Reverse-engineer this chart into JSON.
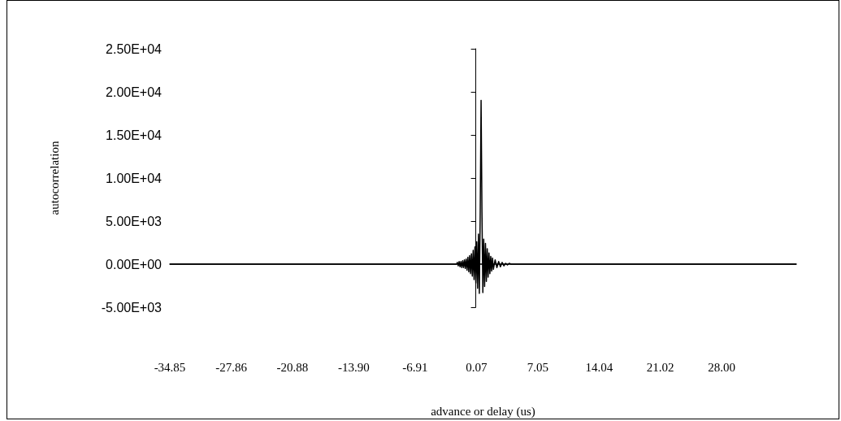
{
  "chart_data": {
    "type": "line",
    "xlabel": "advance or delay (us)",
    "ylabel": "autocorrelation",
    "xlim": [
      -34.85,
      36.5
    ],
    "xticks": [
      -34.85,
      -27.86,
      -20.88,
      {
        "value": -13.9,
        "label": "-13.90"
      },
      -6.91,
      0.07,
      7.05,
      14.04,
      21.02,
      {
        "value": 28,
        "label": "28.00"
      }
    ],
    "ylim": [
      -5000,
      25000
    ],
    "yticks": [
      {
        "value": -5000,
        "label": "-5.00E+03"
      },
      {
        "value": 0,
        "label": "0.00E+00"
      },
      {
        "value": 5000,
        "label": "5.00E+03"
      },
      {
        "value": 10000,
        "label": "1.00E+04"
      },
      {
        "value": 15000,
        "label": "1.50E+04"
      },
      {
        "value": 20000,
        "label": "2.00E+04"
      },
      {
        "value": 25000,
        "label": "2.50E+04"
      }
    ],
    "grid": false,
    "marker": "none",
    "line_style": "solid",
    "series": [
      {
        "color": "#000000",
        "x": [
          -34.85,
          -3.0,
          -2.2,
          -2.1,
          -2.0,
          -1.9,
          -1.8,
          -1.7,
          -1.6,
          -1.5,
          -1.4,
          -1.3,
          -1.2,
          -1.1,
          -1.0,
          -0.9,
          -0.8,
          -0.7,
          -0.6,
          -0.5,
          -0.4,
          -0.3,
          -0.2,
          -0.1,
          0.0,
          0.1,
          0.2,
          0.3,
          0.4,
          0.5,
          0.6,
          0.7,
          0.8,
          0.9,
          1.0,
          1.1,
          1.2,
          1.3,
          1.4,
          1.5,
          1.6,
          1.7,
          1.8,
          1.9,
          2.0,
          2.2,
          2.4,
          2.6,
          2.8,
          3.0,
          3.2,
          3.4,
          3.6,
          3.8,
          4.0,
          6.0,
          36.5
        ],
        "values": [
          0,
          0,
          0,
          200,
          -200,
          300,
          -300,
          300,
          -400,
          400,
          -400,
          500,
          -500,
          600,
          -700,
          800,
          -900,
          1000,
          -1100,
          1200,
          -1400,
          1600,
          -1800,
          2000,
          -2200,
          2600,
          -2800,
          3500,
          -3400,
          6000,
          19000,
          6000,
          -3300,
          2900,
          -2600,
          2400,
          -2000,
          1800,
          -1500,
          1300,
          -1100,
          900,
          -800,
          700,
          -600,
          500,
          -400,
          300,
          -300,
          200,
          -200,
          100,
          -100,
          100,
          0,
          0,
          0
        ]
      }
    ]
  }
}
